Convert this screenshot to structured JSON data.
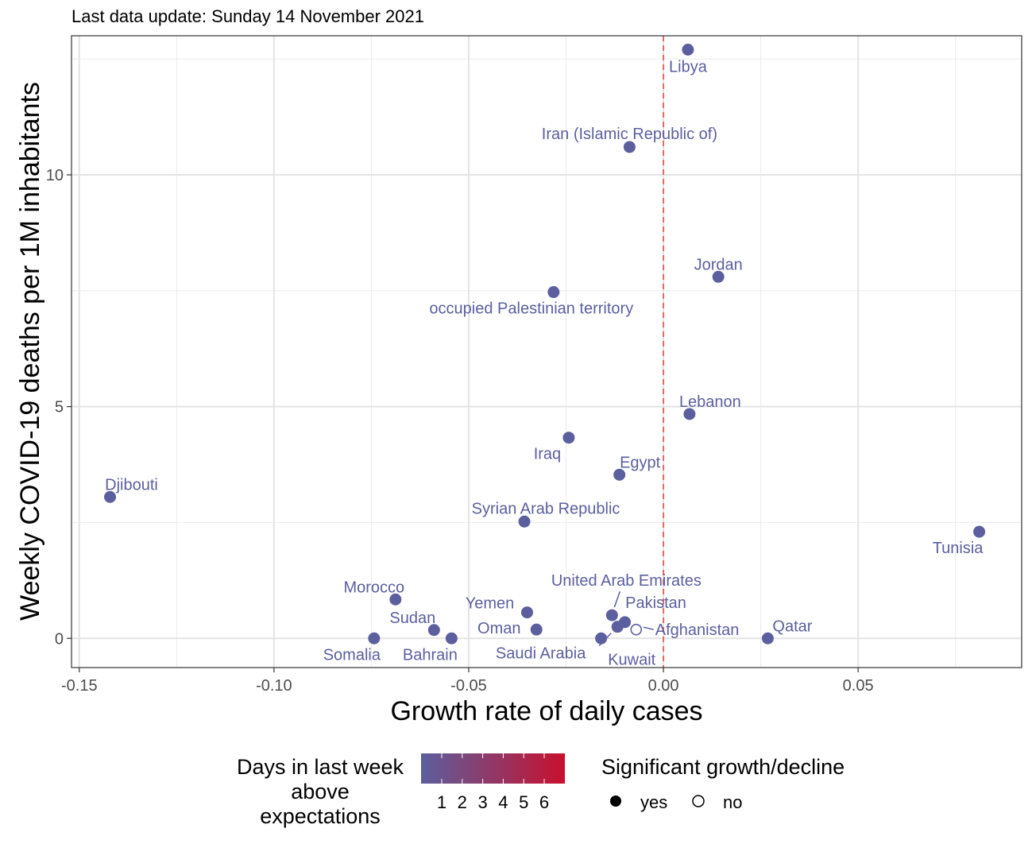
{
  "subtitle": "Last data update: Sunday 14 November 2021",
  "chart_data": {
    "type": "scatter",
    "xlabel": "Growth rate of daily cases",
    "ylabel": "Weekly COVID-19 deaths per 1M inhabitants",
    "xlim": [
      -0.152,
      0.092
    ],
    "ylim": [
      -0.63,
      13.0
    ],
    "xticks": [
      -0.15,
      -0.1,
      -0.05,
      0.0,
      0.05
    ],
    "xtick_labels": [
      "-0.15",
      "-0.10",
      "-0.05",
      "0.00",
      "0.05"
    ],
    "yticks": [
      0,
      5,
      10
    ],
    "ytick_labels": [
      "0",
      "5",
      "10"
    ],
    "grid": true,
    "reference_line": {
      "x": 0,
      "style": "dashed",
      "color": "#e8685f"
    },
    "point_color": "#5b5f9e",
    "points": [
      {
        "label": "Libya",
        "x": 0.0063,
        "y": 12.7,
        "significant": true
      },
      {
        "label": "Iran (Islamic Republic of)",
        "x": -0.0087,
        "y": 10.6,
        "significant": true
      },
      {
        "label": "Jordan",
        "x": 0.0141,
        "y": 7.8,
        "significant": true
      },
      {
        "label": "occupied Palestinian territory",
        "x": -0.0282,
        "y": 7.47,
        "significant": true
      },
      {
        "label": "Lebanon",
        "x": 0.0067,
        "y": 4.84,
        "significant": true
      },
      {
        "label": "Iraq",
        "x": -0.0243,
        "y": 4.33,
        "significant": true
      },
      {
        "label": "Egypt",
        "x": -0.0113,
        "y": 3.53,
        "significant": true
      },
      {
        "label": "Djibouti",
        "x": -0.1421,
        "y": 3.05,
        "significant": true
      },
      {
        "label": "Syrian Arab Republic",
        "x": -0.0357,
        "y": 2.52,
        "significant": true
      },
      {
        "label": "Tunisia",
        "x": 0.0811,
        "y": 2.3,
        "significant": true
      },
      {
        "label": "Morocco",
        "x": -0.0688,
        "y": 0.84,
        "significant": true
      },
      {
        "label": "Yemen",
        "x": -0.035,
        "y": 0.56,
        "significant": true
      },
      {
        "label": "United Arab Emirates",
        "x": -0.0132,
        "y": 0.5,
        "significant": true
      },
      {
        "label": "Pakistan",
        "x": -0.0099,
        "y": 0.35,
        "significant": true
      },
      {
        "label": "Sudan",
        "x": -0.0589,
        "y": 0.18,
        "significant": true
      },
      {
        "label": "Oman",
        "x": -0.0326,
        "y": 0.19,
        "significant": true
      },
      {
        "label": "Afghanistan",
        "x": -0.007,
        "y": 0.19,
        "significant": false
      },
      {
        "label": "Kuwait",
        "x": -0.0118,
        "y": 0.25,
        "significant": true
      },
      {
        "label": "Somalia",
        "x": -0.0743,
        "y": 0.0,
        "significant": true
      },
      {
        "label": "Bahrain",
        "x": -0.0544,
        "y": 0.0,
        "significant": true
      },
      {
        "label": "Saudi Arabia",
        "x": -0.016,
        "y": 0.0,
        "significant": true
      },
      {
        "label": "Qatar",
        "x": 0.0268,
        "y": 0.0,
        "significant": true
      }
    ],
    "legend": {
      "color_title": "Days in last week above expectations",
      "color_title_lines": [
        "Days in last week",
        "above",
        "expectations"
      ],
      "color_scale": {
        "low": "#5b5f9e",
        "high": "#c8102e"
      },
      "color_labels": [
        "1",
        "2",
        "3",
        "4",
        "5",
        "6"
      ],
      "shape_title": "Significant growth/decline",
      "shape_labels": [
        "yes",
        "no"
      ]
    }
  }
}
